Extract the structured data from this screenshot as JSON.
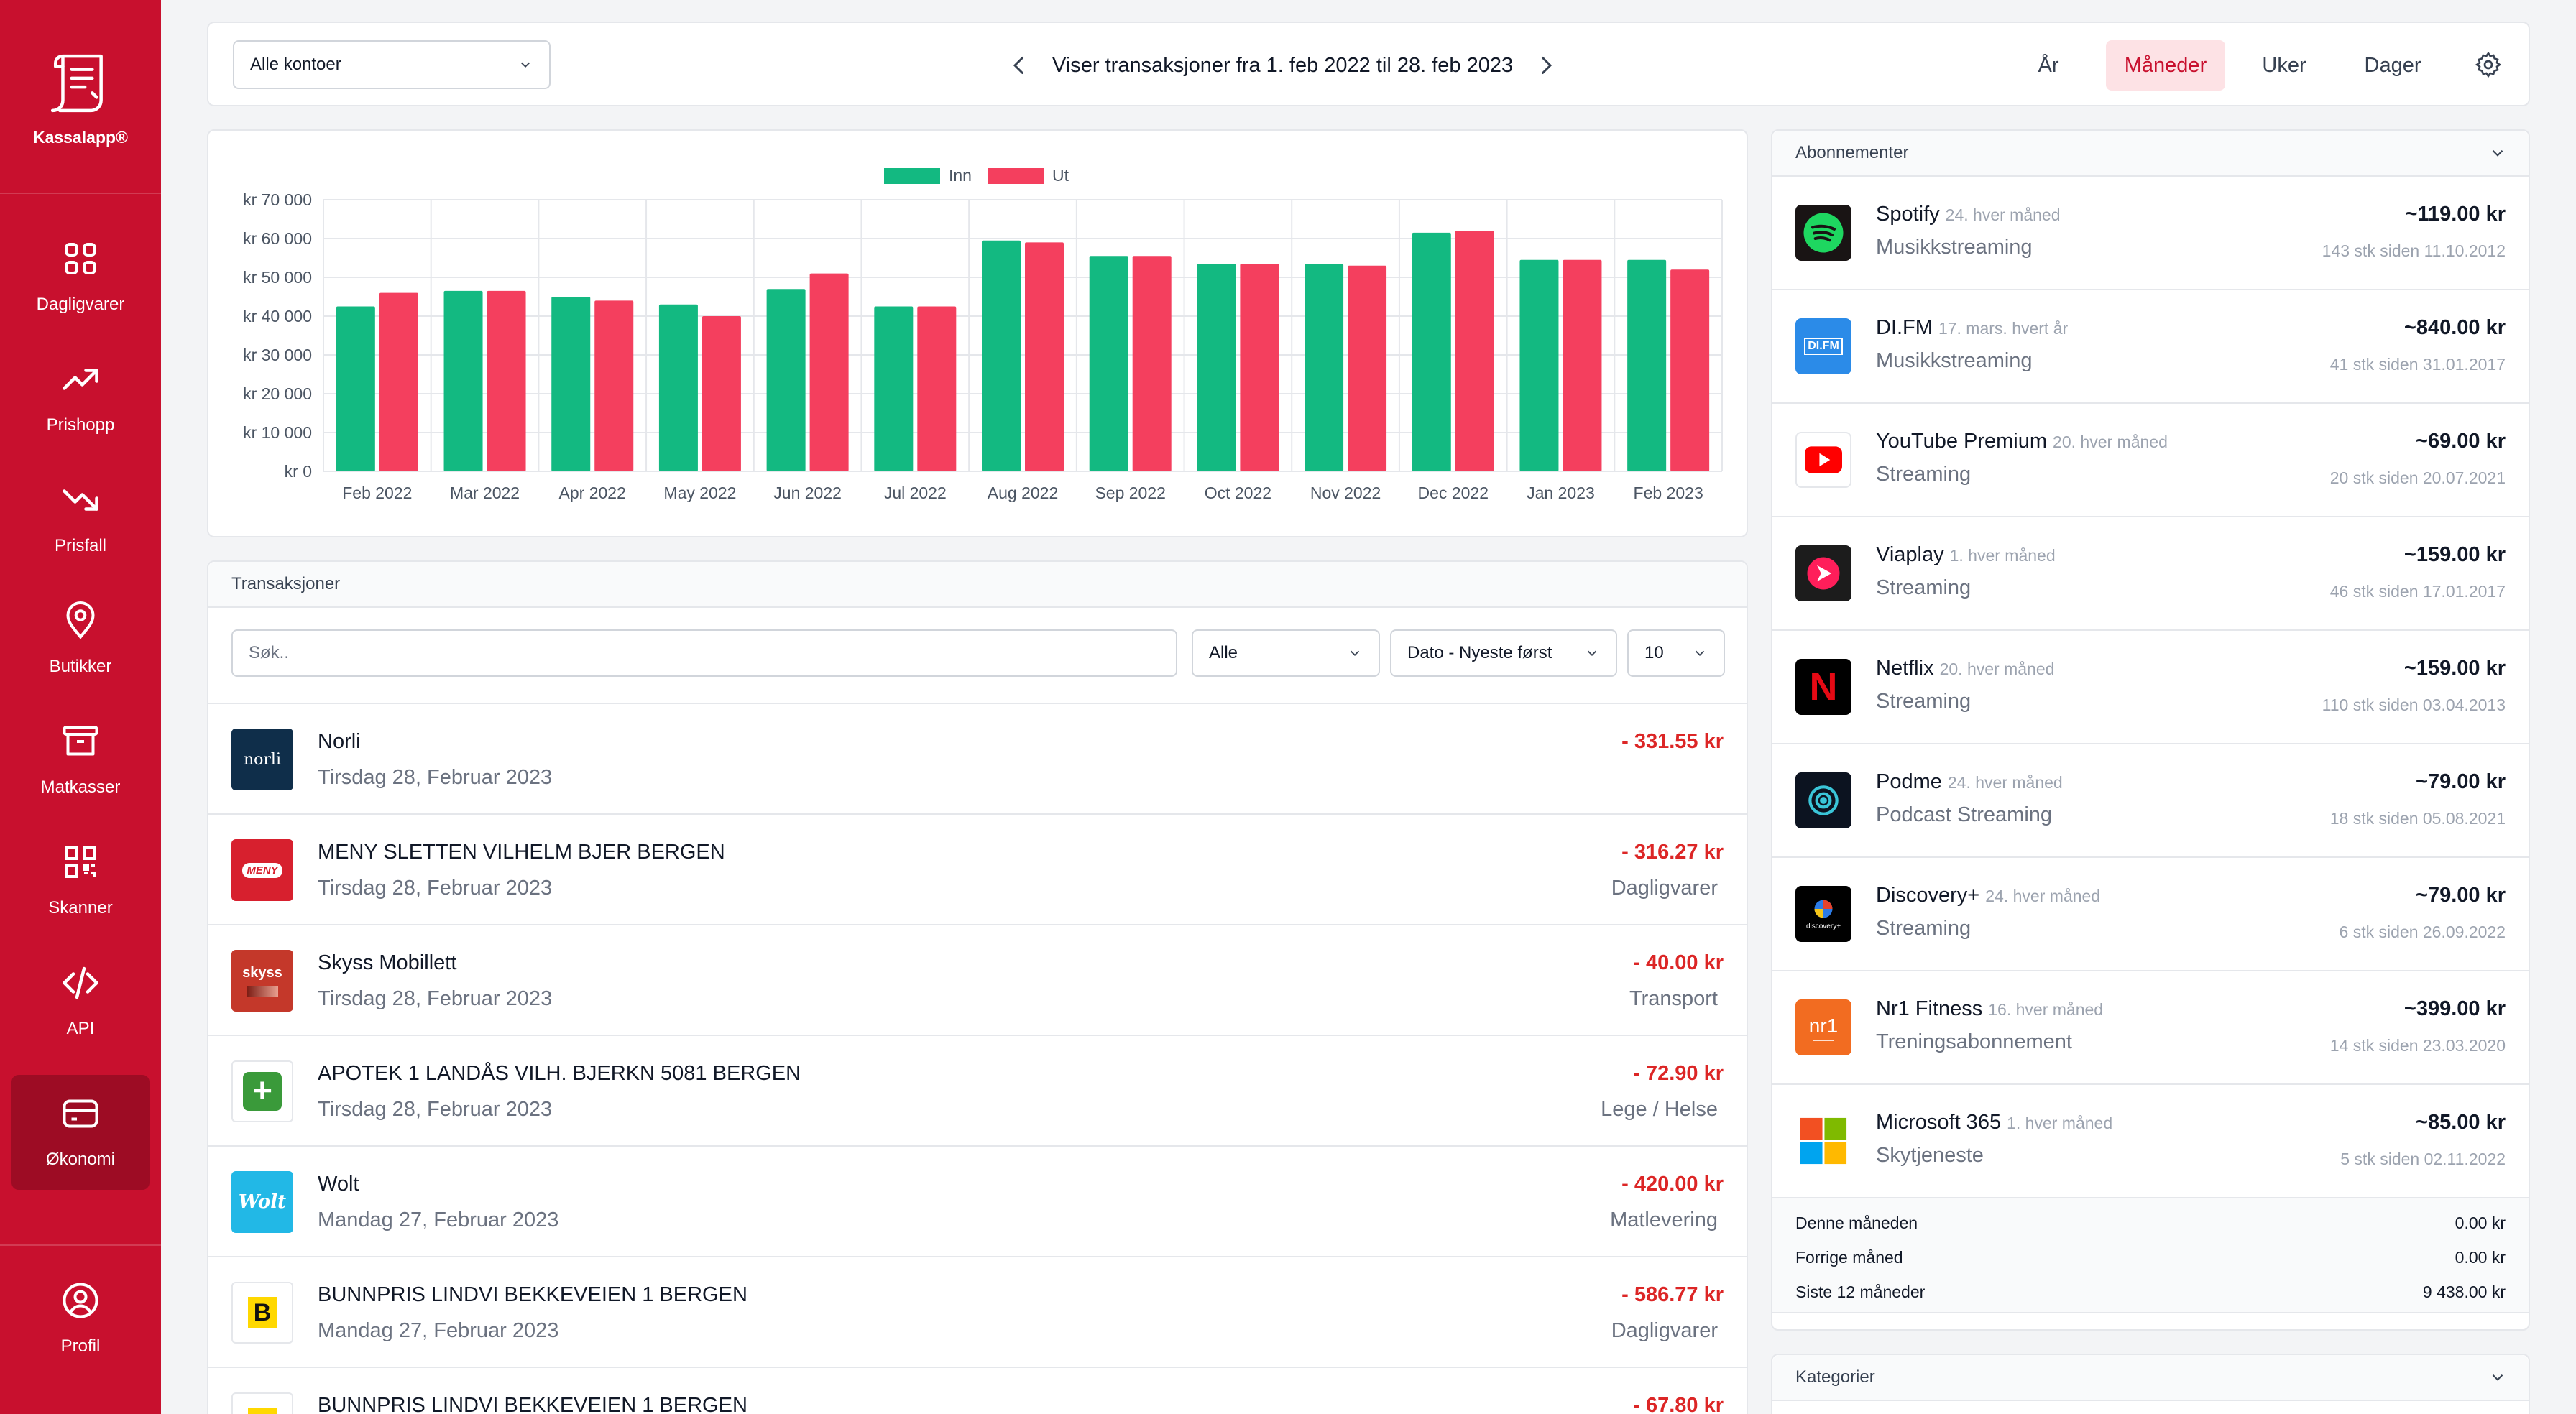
{
  "app": {
    "brand": "Kassalapp®",
    "nav": [
      {
        "key": "dagligvarer",
        "label": "Dagligvarer",
        "icon": "grid-icon",
        "active": false
      },
      {
        "key": "prishopp",
        "label": "Prishopp",
        "icon": "trending-up-icon",
        "active": false
      },
      {
        "key": "prisfall",
        "label": "Prisfall",
        "icon": "trending-down-icon",
        "active": false
      },
      {
        "key": "butikker",
        "label": "Butikker",
        "icon": "map-pin-icon",
        "active": false
      },
      {
        "key": "matkasser",
        "label": "Matkasser",
        "icon": "archive-box-icon",
        "active": false
      },
      {
        "key": "skanner",
        "label": "Skanner",
        "icon": "qr-code-icon",
        "active": false
      },
      {
        "key": "api",
        "label": "API",
        "icon": "code-icon",
        "active": false
      },
      {
        "key": "okonomi",
        "label": "Økonomi",
        "icon": "credit-card-icon",
        "active": true
      }
    ],
    "profile": {
      "label": "Profil",
      "icon": "user-circle-icon"
    }
  },
  "toolbar": {
    "account_select": "Alle kontoer",
    "range_text": "Viser transaksjoner fra 1. feb 2022 til 28. feb 2023",
    "periods": [
      {
        "label": "År",
        "active": false
      },
      {
        "label": "Måneder",
        "active": true
      },
      {
        "label": "Uker",
        "active": false
      },
      {
        "label": "Dager",
        "active": false
      }
    ],
    "settings_icon": "gear-icon"
  },
  "colors": {
    "brand": "#c8102e",
    "inn": "#13b981",
    "ut": "#f43f5e"
  },
  "chart_data": {
    "type": "bar",
    "categories": [
      "Feb 2022",
      "Mar 2022",
      "Apr 2022",
      "May 2022",
      "Jun 2022",
      "Jul 2022",
      "Aug 2022",
      "Sep 2022",
      "Oct 2022",
      "Nov 2022",
      "Dec 2022",
      "Jan 2023",
      "Feb 2023"
    ],
    "series": [
      {
        "name": "Inn",
        "color": "#13b981",
        "values": [
          42500,
          46500,
          45000,
          43000,
          47000,
          42500,
          59500,
          55500,
          53500,
          53500,
          61500,
          54500,
          54500
        ]
      },
      {
        "name": "Ut",
        "color": "#f43f5e",
        "values": [
          46000,
          46500,
          44000,
          40000,
          51000,
          42500,
          59000,
          55500,
          53500,
          53000,
          62000,
          54500,
          52000
        ]
      }
    ],
    "y_ticks": [
      "kr 0",
      "kr 10 000",
      "kr 20 000",
      "kr 30 000",
      "kr 40 000",
      "kr 50 000",
      "kr 60 000",
      "kr 70 000"
    ],
    "ylim": [
      0,
      70000
    ],
    "legend": "top-center",
    "grid": true
  },
  "transactions": {
    "title": "Transaksjoner",
    "search_placeholder": "Søk..",
    "filter_type": "Alle",
    "sort": "Dato - Nyeste først",
    "page_size": "10",
    "rows": [
      {
        "name": "Norli",
        "date": "Tirsdag 28, Februar 2023",
        "amount": "- 331.55 kr",
        "category": "",
        "logo": "norli",
        "logo_bg": "#0f2e4a"
      },
      {
        "name": "MENY SLETTEN VILHELM BJER BERGEN",
        "date": "Tirsdag 28, Februar 2023",
        "amount": "- 316.27 kr",
        "category": "Dagligvarer",
        "logo": "MENY",
        "logo_bg": "#d7202e"
      },
      {
        "name": "Skyss Mobillett",
        "date": "Tirsdag 28, Februar 2023",
        "amount": "- 40.00 kr",
        "category": "Transport",
        "logo": "skyss",
        "logo_bg": "#c4382a"
      },
      {
        "name": "APOTEK 1 LANDÅS VILH. BJERKN 5081 BERGEN",
        "date": "Tirsdag 28, Februar 2023",
        "amount": "- 72.90 kr",
        "category": "Lege / Helse",
        "logo": "+",
        "logo_bg": "#3a9a3a"
      },
      {
        "name": "Wolt",
        "date": "Mandag 27, Februar 2023",
        "amount": "- 420.00 kr",
        "category": "Matlevering",
        "logo": "Wolt",
        "logo_bg": "#22b8e6"
      },
      {
        "name": "BUNNPRIS LINDVI BEKKEVEIEN 1 BERGEN",
        "date": "Mandag 27, Februar 2023",
        "amount": "- 586.77 kr",
        "category": "Dagligvarer",
        "logo": "B",
        "logo_bg": "#ffd800"
      },
      {
        "name": "BUNNPRIS LINDVI BEKKEVEIEN 1 BERGEN",
        "date": "",
        "amount": "- 67.80 kr",
        "category": "",
        "logo": "B",
        "logo_bg": "#ffd800"
      }
    ]
  },
  "subscriptions": {
    "title": "Abonnementer",
    "items": [
      {
        "name": "Spotify",
        "schedule": "24. hver måned",
        "category": "Musikkstreaming",
        "price": "~119.00 kr",
        "count": "143 stk siden 11.10.2012",
        "logo": "spotify",
        "logo_bg": "#191414"
      },
      {
        "name": "DI.FM",
        "schedule": "17. mars. hvert år",
        "category": "Musikkstreaming",
        "price": "~840.00 kr",
        "count": "41 stk siden 31.01.2017",
        "logo": "DI.FM",
        "logo_bg": "#2b8be8"
      },
      {
        "name": "YouTube Premium",
        "schedule": "20. hver måned",
        "category": "Streaming",
        "price": "~69.00 kr",
        "count": "20 stk siden 20.07.2021",
        "logo": "youtube",
        "logo_bg": "#ffffff"
      },
      {
        "name": "Viaplay",
        "schedule": "1. hver måned",
        "category": "Streaming",
        "price": "~159.00 kr",
        "count": "46 stk siden 17.01.2017",
        "logo": "viaplay",
        "logo_bg": "#1c1c1c"
      },
      {
        "name": "Netflix",
        "schedule": "20. hver måned",
        "category": "Streaming",
        "price": "~159.00 kr",
        "count": "110 stk siden 03.04.2013",
        "logo": "N",
        "logo_bg": "#000000"
      },
      {
        "name": "Podme",
        "schedule": "24. hver måned",
        "category": "Podcast Streaming",
        "price": "~79.00 kr",
        "count": "18 stk siden 05.08.2021",
        "logo": "podme",
        "logo_bg": "#0c1320"
      },
      {
        "name": "Discovery+",
        "schedule": "24. hver måned",
        "category": "Streaming",
        "price": "~79.00 kr",
        "count": "6 stk siden 26.09.2022",
        "logo": "discovery+",
        "logo_bg": "#000000"
      },
      {
        "name": "Nr1 Fitness",
        "schedule": "16. hver måned",
        "category": "Treningsabonnement",
        "price": "~399.00 kr",
        "count": "14 stk siden 23.03.2020",
        "logo": "nr1",
        "logo_bg": "#f26c21"
      },
      {
        "name": "Microsoft 365",
        "schedule": "1. hver måned",
        "category": "Skytjeneste",
        "price": "~85.00 kr",
        "count": "5 stk siden 02.11.2022",
        "logo": "microsoft",
        "logo_bg": "#ffffff"
      }
    ],
    "summary": [
      {
        "label": "Denne måneden",
        "value": "0.00 kr"
      },
      {
        "label": "Forrige måned",
        "value": "0.00 kr"
      },
      {
        "label": "Siste 12 måneder",
        "value": "9 438.00 kr"
      }
    ]
  },
  "categories_panel": {
    "title": "Kategorier"
  }
}
